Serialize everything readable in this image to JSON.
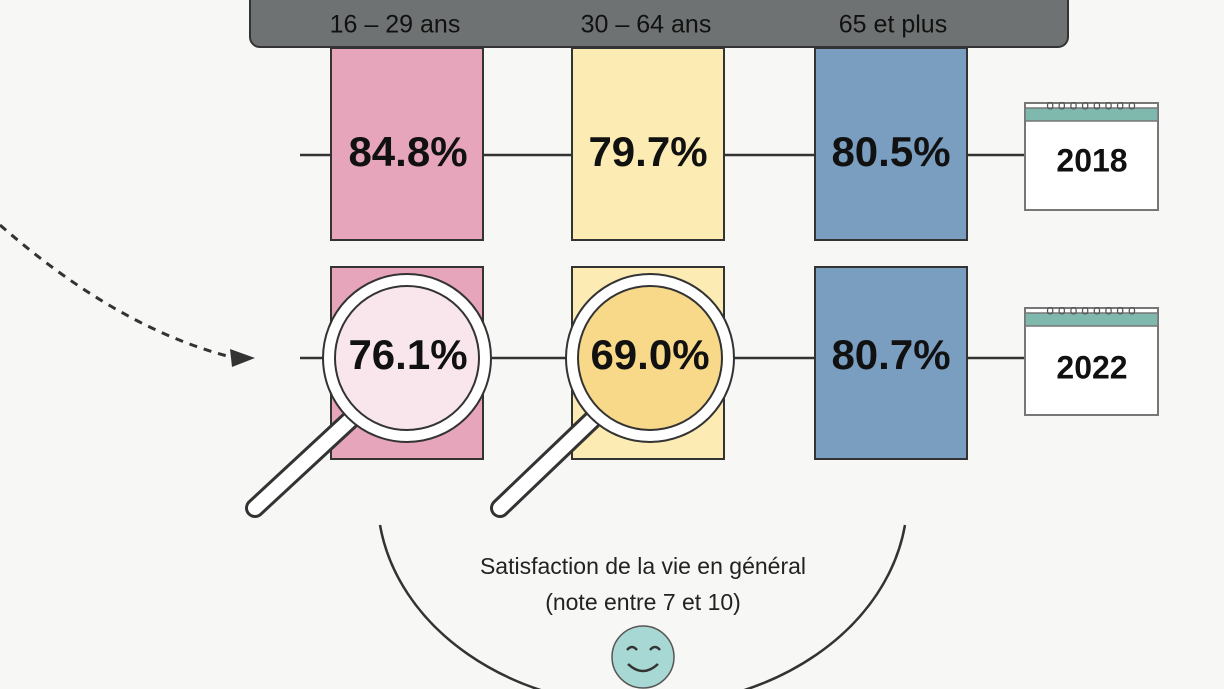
{
  "header": {
    "groups": [
      "16 – 29 ans",
      "30 – 64 ans",
      "65 et plus"
    ]
  },
  "rows": [
    {
      "year": "2018",
      "values": [
        "84.8%",
        "79.7%",
        "80.5%"
      ]
    },
    {
      "year": "2022",
      "values": [
        "76.1%",
        "69.0%",
        "80.7%"
      ]
    }
  ],
  "caption": {
    "title": "Satisfaction de la vie en général",
    "note": "(note entre 7 et 10)"
  }
}
